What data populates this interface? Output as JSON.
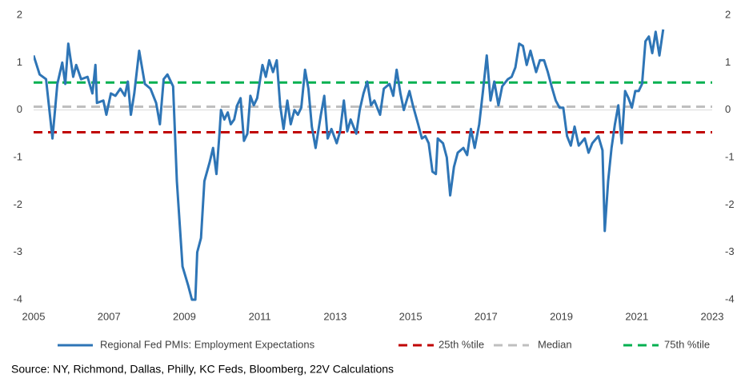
{
  "chart_data": {
    "type": "line",
    "source": "Source: NY, Richmond, Dallas, Philly, KC Feds, Bloomberg, 22V Calculations",
    "xlim": [
      2005,
      2023
    ],
    "xticks": [
      2005,
      2007,
      2009,
      2011,
      2013,
      2015,
      2017,
      2019,
      2021,
      2023
    ],
    "ylim": [
      -4,
      2
    ],
    "yticks": [
      2,
      1,
      0,
      -1,
      -2,
      -3,
      -4
    ],
    "y2lim": [
      -4,
      2
    ],
    "y2ticks": [
      2,
      1,
      0,
      -1,
      -2,
      -3,
      -4
    ],
    "legend": "bottom",
    "series": [
      {
        "name": "Regional Fed PMIs: Employment Expectations",
        "color": "#2e75b6",
        "style": "solid",
        "x": [
          2005.0,
          2005.16,
          2005.33,
          2005.5,
          2005.63,
          2005.76,
          2005.84,
          2005.92,
          2006.05,
          2006.13,
          2006.26,
          2006.43,
          2006.56,
          2006.64,
          2006.68,
          2006.85,
          2006.93,
          2007.05,
          2007.17,
          2007.3,
          2007.42,
          2007.5,
          2007.58,
          2007.67,
          2007.8,
          2007.95,
          2008.1,
          2008.25,
          2008.35,
          2008.45,
          2008.55,
          2008.7,
          2008.8,
          2008.95,
          2009.1,
          2009.2,
          2009.29,
          2009.34,
          2009.44,
          2009.53,
          2009.67,
          2009.76,
          2009.85,
          2009.93,
          2009.97,
          2010.06,
          2010.15,
          2010.23,
          2010.32,
          2010.4,
          2010.49,
          2010.58,
          2010.67,
          2010.75,
          2010.84,
          2010.93,
          2011.07,
          2011.16,
          2011.25,
          2011.35,
          2011.45,
          2011.54,
          2011.63,
          2011.73,
          2011.82,
          2011.92,
          2012.01,
          2012.1,
          2012.2,
          2012.29,
          2012.38,
          2012.48,
          2012.62,
          2012.71,
          2012.8,
          2012.9,
          2013.04,
          2013.13,
          2013.23,
          2013.32,
          2013.41,
          2013.56,
          2013.65,
          2013.75,
          2013.85,
          2013.95,
          2014.04,
          2014.19,
          2014.29,
          2014.44,
          2014.54,
          2014.63,
          2014.73,
          2014.82,
          2014.97,
          2015.06,
          2015.2,
          2015.3,
          2015.39,
          2015.48,
          2015.58,
          2015.67,
          2015.72,
          2015.86,
          2015.96,
          2016.05,
          2016.15,
          2016.25,
          2016.4,
          2016.5,
          2016.6,
          2016.7,
          2016.82,
          2016.92,
          2017.02,
          2017.12,
          2017.22,
          2017.33,
          2017.43,
          2017.58,
          2017.68,
          2017.78,
          2017.88,
          2017.98,
          2018.08,
          2018.18,
          2018.33,
          2018.43,
          2018.54,
          2018.64,
          2018.74,
          2018.85,
          2018.95,
          2019.05,
          2019.15,
          2019.25,
          2019.35,
          2019.46,
          2019.62,
          2019.72,
          2019.82,
          2019.98,
          2020.09,
          2020.15,
          2020.24,
          2020.33,
          2020.42,
          2020.51,
          2020.6,
          2020.69,
          2020.78,
          2020.87,
          2020.96,
          2021.05,
          2021.14,
          2021.23,
          2021.32,
          2021.41,
          2021.5,
          2021.6,
          2021.7
        ],
        "values": [
          1.15,
          0.75,
          0.65,
          -0.6,
          0.55,
          1.0,
          0.55,
          1.4,
          0.7,
          0.95,
          0.65,
          0.7,
          0.35,
          0.95,
          0.15,
          0.2,
          -0.1,
          0.35,
          0.3,
          0.45,
          0.3,
          0.6,
          -0.1,
          0.35,
          1.25,
          0.55,
          0.45,
          0.15,
          -0.3,
          0.65,
          0.75,
          0.5,
          -1.5,
          -3.3,
          -3.7,
          -4.0,
          -4.0,
          -3.0,
          -2.7,
          -1.5,
          -1.1,
          -0.8,
          -1.35,
          -0.5,
          0.0,
          -0.2,
          -0.05,
          -0.3,
          -0.2,
          0.1,
          0.25,
          -0.65,
          -0.5,
          0.3,
          0.1,
          0.25,
          0.95,
          0.7,
          1.05,
          0.8,
          1.05,
          0.1,
          -0.4,
          0.2,
          -0.3,
          0.0,
          -0.1,
          0.05,
          0.85,
          0.45,
          -0.35,
          -0.8,
          -0.1,
          0.3,
          -0.6,
          -0.4,
          -0.7,
          -0.45,
          0.2,
          -0.45,
          -0.2,
          -0.5,
          0.0,
          0.35,
          0.6,
          0.1,
          0.2,
          -0.1,
          0.45,
          0.55,
          0.3,
          0.85,
          0.35,
          0.0,
          0.4,
          0.1,
          -0.3,
          -0.6,
          -0.55,
          -0.7,
          -1.3,
          -1.35,
          -0.6,
          -0.7,
          -1.0,
          -1.8,
          -1.2,
          -0.9,
          -0.8,
          -0.95,
          -0.4,
          -0.8,
          -0.3,
          0.4,
          1.15,
          0.2,
          0.6,
          0.1,
          0.5,
          0.65,
          0.7,
          0.9,
          1.4,
          1.35,
          0.95,
          1.25,
          0.8,
          1.05,
          1.05,
          0.8,
          0.5,
          0.2,
          0.05,
          0.05,
          -0.55,
          -0.75,
          -0.35,
          -0.75,
          -0.6,
          -0.9,
          -0.7,
          -0.55,
          -0.85,
          -2.55,
          -1.5,
          -0.8,
          -0.3,
          0.1,
          -0.7,
          0.4,
          0.25,
          0.05,
          0.4,
          0.4,
          0.55,
          1.45,
          1.55,
          1.2,
          1.65,
          1.15,
          1.7
        ]
      },
      {
        "name": "25th %tile",
        "color": "#c00000",
        "style": "dashed",
        "x": [
          2005,
          2023
        ],
        "values": [
          -0.47,
          -0.47
        ]
      },
      {
        "name": "Median",
        "color": "#bfbfbf",
        "style": "dashed",
        "x": [
          2005,
          2023
        ],
        "values": [
          0.07,
          0.07
        ]
      },
      {
        "name": "75th %tile",
        "color": "#00b050",
        "style": "dashed",
        "x": [
          2005,
          2023
        ],
        "values": [
          0.58,
          0.58
        ]
      }
    ]
  }
}
